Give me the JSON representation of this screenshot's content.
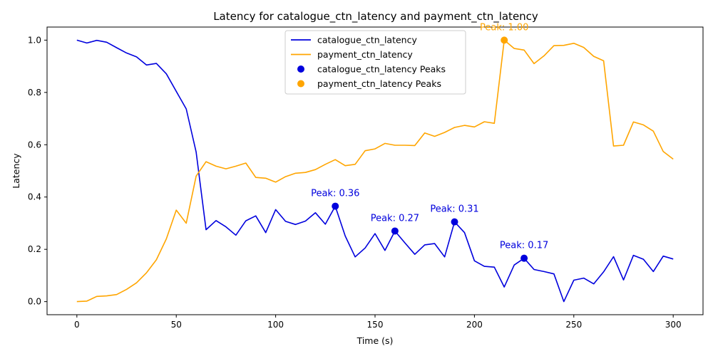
{
  "chart_data": {
    "type": "line",
    "title": "Latency for catalogue_ctn_latency and payment_ctn_latency",
    "xlabel": "Time (s)",
    "ylabel": "Latency",
    "xlim": [
      -15,
      315
    ],
    "ylim": [
      -0.05,
      1.05
    ],
    "xticks": [
      0,
      50,
      100,
      150,
      200,
      250,
      300
    ],
    "xtick_labels": [
      "0",
      "50",
      "100",
      "150",
      "200",
      "250",
      "300"
    ],
    "yticks": [
      0.0,
      0.2,
      0.4,
      0.6,
      0.8,
      1.0
    ],
    "ytick_labels": [
      "0.0",
      "0.2",
      "0.4",
      "0.6",
      "0.8",
      "1.0"
    ],
    "grid": false,
    "legend_position": "top-center",
    "x": [
      0,
      5,
      10,
      15,
      20,
      25,
      30,
      35,
      40,
      45,
      50,
      55,
      60,
      65,
      70,
      75,
      80,
      85,
      90,
      95,
      100,
      105,
      110,
      115,
      120,
      125,
      130,
      135,
      140,
      145,
      150,
      155,
      160,
      165,
      170,
      175,
      180,
      185,
      190,
      195,
      200,
      205,
      210,
      215,
      220,
      225,
      230,
      235,
      240,
      245,
      250,
      255,
      260,
      265,
      270,
      275,
      280,
      285,
      290,
      295,
      300
    ],
    "series": [
      {
        "name": "catalogue_ctn_latency",
        "color": "#0000dd",
        "values": [
          1.0,
          0.989,
          0.999,
          0.992,
          0.971,
          0.951,
          0.936,
          0.905,
          0.911,
          0.871,
          0.804,
          0.737,
          0.572,
          0.275,
          0.31,
          0.286,
          0.254,
          0.309,
          0.328,
          0.264,
          0.352,
          0.307,
          0.295,
          0.308,
          0.34,
          0.296,
          0.365,
          0.251,
          0.171,
          0.205,
          0.26,
          0.196,
          0.27,
          0.225,
          0.181,
          0.217,
          0.222,
          0.171,
          0.305,
          0.264,
          0.156,
          0.135,
          0.132,
          0.056,
          0.14,
          0.166,
          0.123,
          0.115,
          0.106,
          0.0,
          0.082,
          0.09,
          0.068,
          0.114,
          0.172,
          0.083,
          0.177,
          0.162,
          0.115,
          0.174,
          0.163
        ]
      },
      {
        "name": "payment_ctn_latency",
        "color": "#ffa500",
        "values": [
          0.0,
          0.002,
          0.02,
          0.022,
          0.027,
          0.047,
          0.072,
          0.11,
          0.16,
          0.24,
          0.35,
          0.3,
          0.48,
          0.535,
          0.518,
          0.508,
          0.518,
          0.53,
          0.475,
          0.472,
          0.457,
          0.478,
          0.491,
          0.494,
          0.505,
          0.525,
          0.543,
          0.52,
          0.525,
          0.577,
          0.584,
          0.605,
          0.598,
          0.598,
          0.597,
          0.645,
          0.632,
          0.647,
          0.666,
          0.674,
          0.668,
          0.688,
          0.682,
          1.0,
          0.968,
          0.962,
          0.91,
          0.94,
          0.979,
          0.98,
          0.988,
          0.972,
          0.938,
          0.921,
          0.595,
          0.598,
          0.687,
          0.676,
          0.652,
          0.574,
          0.545
        ]
      }
    ],
    "peaks": [
      {
        "series": "catalogue_ctn_latency Peaks",
        "color": "#0000dd",
        "points": [
          {
            "x": 130,
            "y": 0.365,
            "label": "Peak: 0.36"
          },
          {
            "x": 160,
            "y": 0.27,
            "label": "Peak: 0.27"
          },
          {
            "x": 190,
            "y": 0.305,
            "label": "Peak: 0.31"
          },
          {
            "x": 225,
            "y": 0.166,
            "label": "Peak: 0.17"
          }
        ]
      },
      {
        "series": "payment_ctn_latency Peaks",
        "color": "#ffa500",
        "points": [
          {
            "x": 215,
            "y": 1.0,
            "label": "Peak: 1.00"
          }
        ]
      }
    ],
    "legend": [
      {
        "label": "catalogue_ctn_latency",
        "kind": "line",
        "color": "#0000dd"
      },
      {
        "label": "payment_ctn_latency",
        "kind": "line",
        "color": "#ffa500"
      },
      {
        "label": "catalogue_ctn_latency Peaks",
        "kind": "marker",
        "color": "#0000dd"
      },
      {
        "label": "payment_ctn_latency Peaks",
        "kind": "marker",
        "color": "#ffa500"
      }
    ]
  }
}
